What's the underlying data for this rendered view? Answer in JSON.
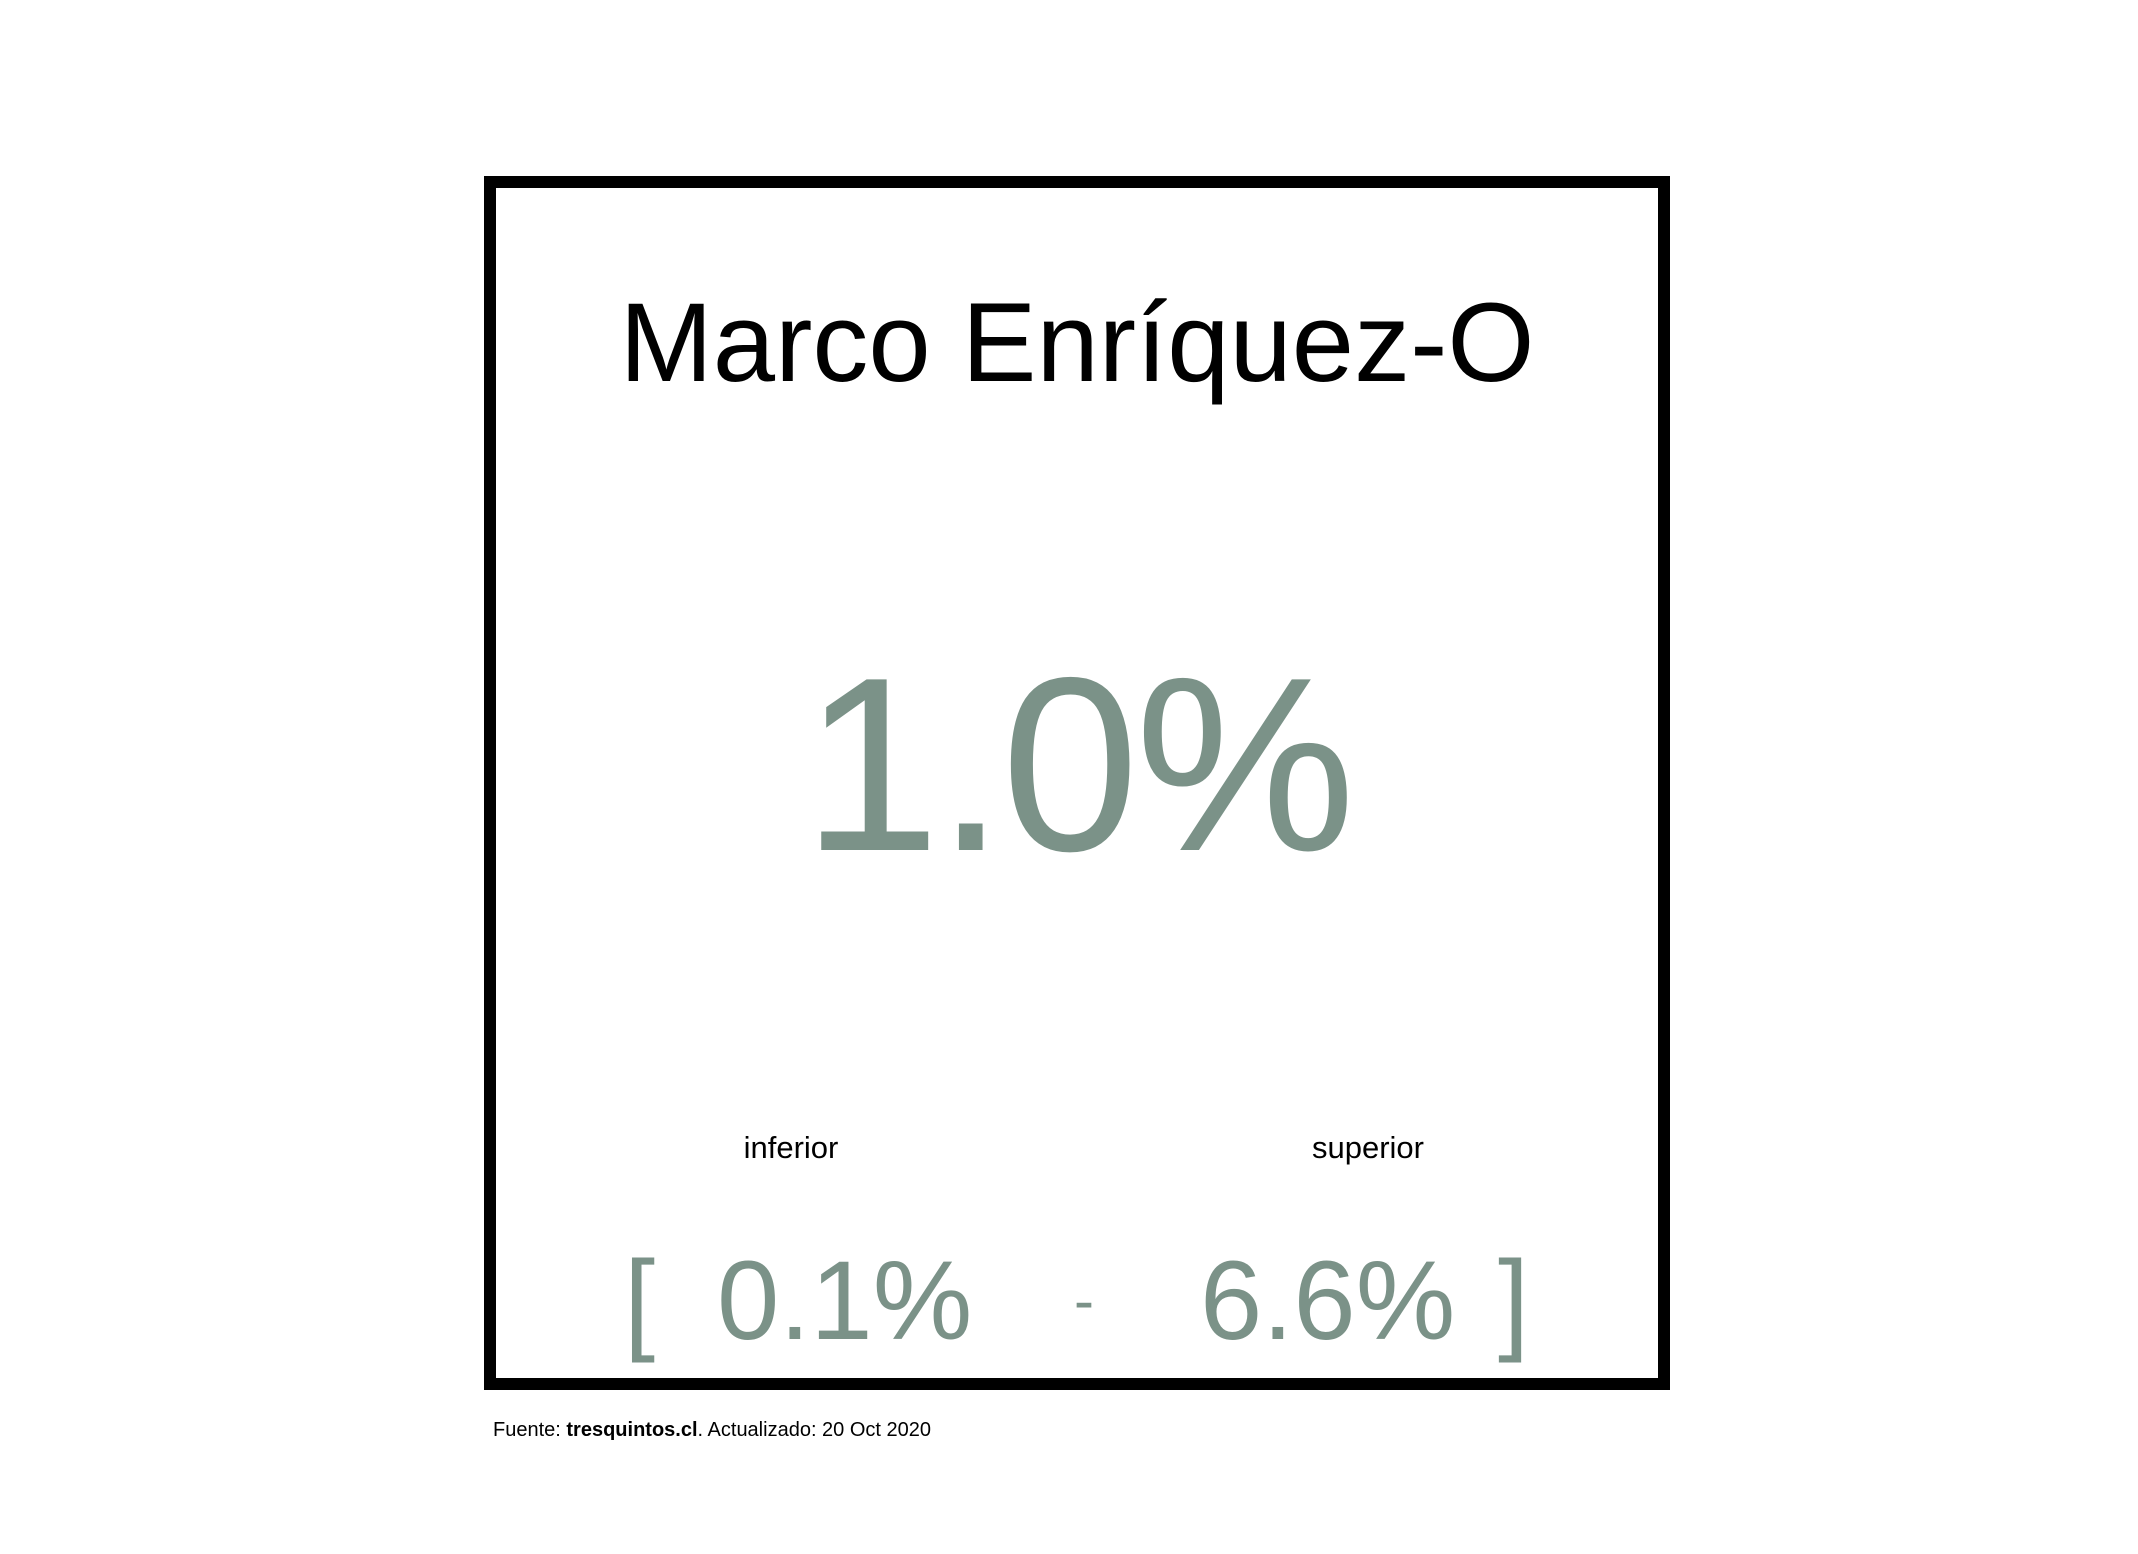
{
  "title": "Marco Enríquez-O",
  "estimate": "1.0%",
  "bounds": {
    "lower_label": "inferior",
    "upper_label": "superior",
    "open_bracket": "[",
    "lower_value": "0.1%",
    "separator": "-",
    "upper_value": "6.6%",
    "close_bracket": "]"
  },
  "footer": {
    "source_prefix": "Fuente: ",
    "source_name": "tresquintos.cl",
    "updated_text": ". Actualizado: 20 Oct 2020"
  },
  "colors": {
    "accent": "#7b9288",
    "text": "#000000",
    "border": "#000000"
  }
}
